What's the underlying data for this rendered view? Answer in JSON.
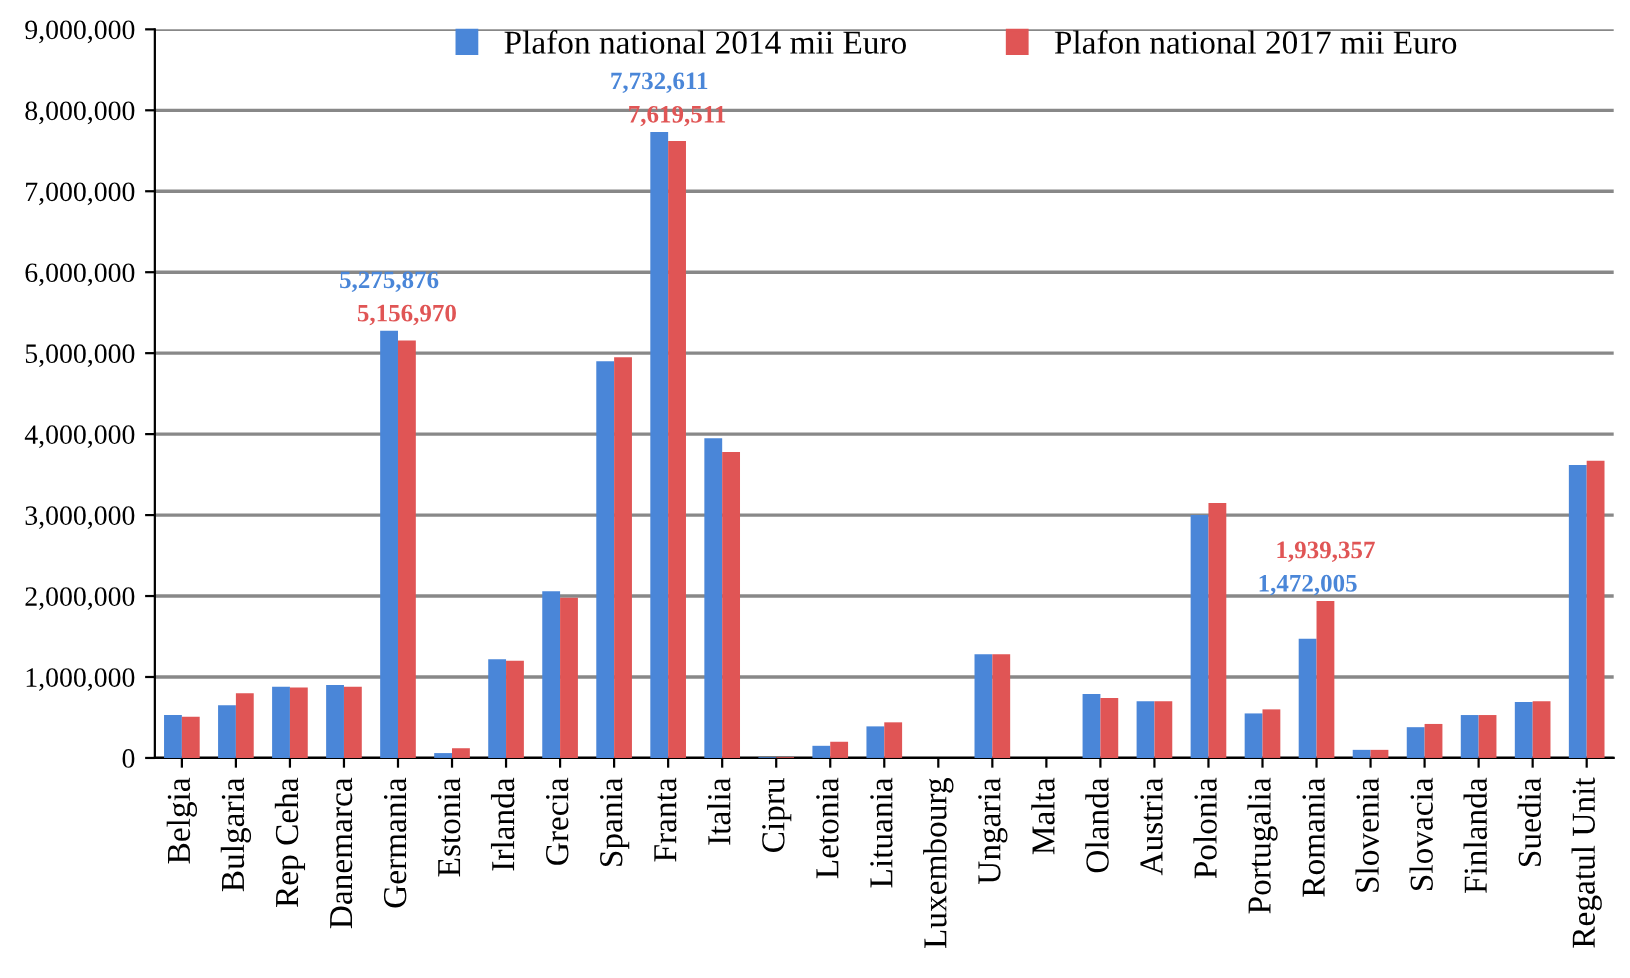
{
  "chart_data": {
    "type": "bar",
    "categories": [
      "Belgia",
      "Bulgaria",
      "Rep Ceha",
      "Danemarca",
      "Germania",
      "Estonia",
      "Irlanda",
      "Grecia",
      "Spania",
      "Franta",
      "Italia",
      "Cipru",
      "Letonia",
      "Lituania",
      "Luxembourg",
      "Ungaria",
      "Malta",
      "Olanda",
      "Austria",
      "Polonia",
      "Portugalia",
      "Romania",
      "Slovenia",
      "Slovacia",
      "Finlanda",
      "Suedia",
      "Regatul Unit"
    ],
    "series": [
      {
        "name": "Plafon national 2014 mii Euro",
        "color": "#4a86d8",
        "values": [
          530000,
          650000,
          880000,
          900000,
          5275876,
          60000,
          1220000,
          2060000,
          4900000,
          7732611,
          3950000,
          10000,
          150000,
          390000,
          0,
          1280000,
          0,
          790000,
          700000,
          3000000,
          550000,
          1472005,
          100000,
          380000,
          530000,
          690000,
          3620000
        ],
        "value_labels": [
          null,
          null,
          null,
          null,
          "5,275,876",
          null,
          null,
          null,
          null,
          "7,732,611",
          null,
          null,
          null,
          null,
          null,
          null,
          null,
          null,
          null,
          null,
          null,
          "1,472,005",
          null,
          null,
          null,
          null,
          null
        ]
      },
      {
        "name": "Plafon national 2017 mii Euro",
        "color": "#e05555",
        "values": [
          510000,
          800000,
          870000,
          880000,
          5156970,
          120000,
          1200000,
          1980000,
          4950000,
          7619511,
          3780000,
          10000,
          200000,
          440000,
          0,
          1280000,
          0,
          740000,
          700000,
          3150000,
          600000,
          1939357,
          100000,
          420000,
          530000,
          700000,
          3670000
        ],
        "value_labels": [
          null,
          null,
          null,
          null,
          "5,156,970",
          null,
          null,
          null,
          null,
          "7,619,511",
          null,
          null,
          null,
          null,
          null,
          null,
          null,
          null,
          null,
          null,
          null,
          "1,939,357",
          null,
          null,
          null,
          null,
          null
        ]
      }
    ],
    "ylim": [
      0,
      9000000
    ],
    "yticks": [
      {
        "value": 0,
        "label": "0"
      },
      {
        "value": 1000000,
        "label": "1,000,000"
      },
      {
        "value": 2000000,
        "label": "2,000,000"
      },
      {
        "value": 3000000,
        "label": "3,000,000"
      },
      {
        "value": 4000000,
        "label": "4,000,000"
      },
      {
        "value": 5000000,
        "label": "5,000,000"
      },
      {
        "value": 6000000,
        "label": "6,000,000"
      },
      {
        "value": 7000000,
        "label": "7,000,000"
      },
      {
        "value": 8000000,
        "label": "8,000,000"
      },
      {
        "value": 9000000,
        "label": "9,000,000"
      }
    ],
    "grid": "y",
    "legend": "top"
  }
}
